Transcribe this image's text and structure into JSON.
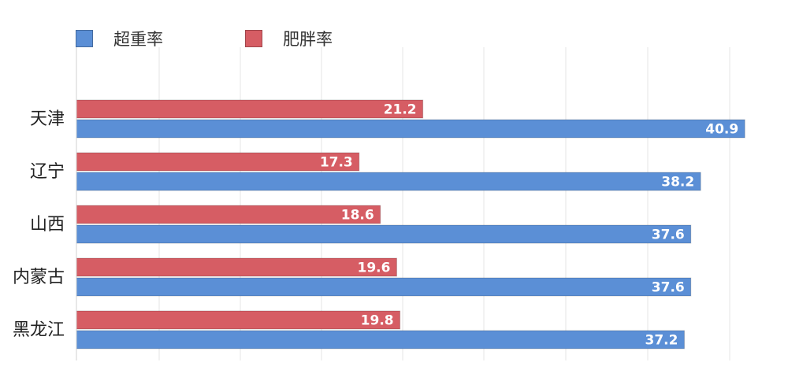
{
  "chart_data": {
    "type": "bar",
    "orientation": "horizontal",
    "categories": [
      "天津",
      "辽宁",
      "山西",
      "内蒙古",
      "黑龙江"
    ],
    "series": [
      {
        "name": "超重率",
        "color": "#5b8fd6",
        "values": [
          40.9,
          38.2,
          37.6,
          37.6,
          37.2
        ]
      },
      {
        "name": "肥胖率",
        "color": "#d65d64",
        "values": [
          21.2,
          17.3,
          18.6,
          19.6,
          19.8
        ]
      }
    ],
    "xlim": [
      0,
      42
    ],
    "grid": true,
    "legend_position": "top-left",
    "data_labels": true
  }
}
